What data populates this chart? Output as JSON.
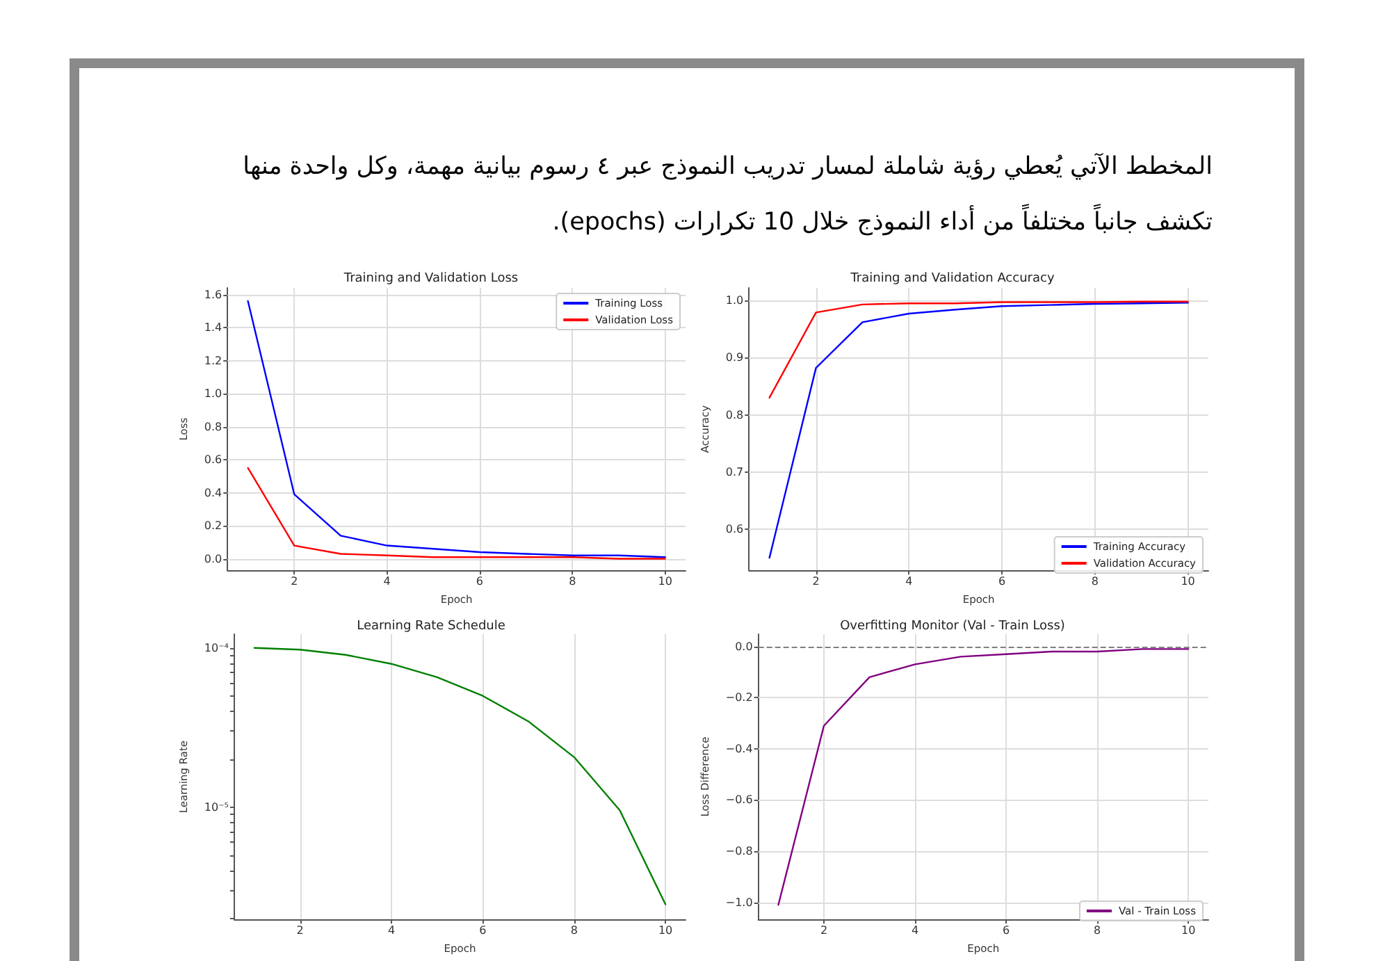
{
  "chart_data": [
    {
      "type": "other",
      "annotations": [
        "المخطط الآتي يُعطي رؤية شاملة لمسار تدريب النموذج عبر ٤ رسوم بيانية مهمة، وكل واحدة منها تكشف جانباً مختلفاً من أداء النموذج خلال 10 تكرارات (epochs)."
      ]
    },
    {
      "type": "line",
      "title": "Training and Validation Loss",
      "xlabel": "Epoch",
      "ylabel": "Loss",
      "x": [
        1,
        2,
        3,
        4,
        5,
        6,
        7,
        8,
        9,
        10
      ],
      "series": [
        {
          "name": "Training Loss",
          "color": "#0000ff",
          "values": [
            1.56,
            0.39,
            0.14,
            0.08,
            0.06,
            0.04,
            0.03,
            0.02,
            0.02,
            0.01
          ]
        },
        {
          "name": "Validation Loss",
          "color": "#ff0000",
          "values": [
            0.55,
            0.08,
            0.03,
            0.02,
            0.01,
            0.01,
            0.01,
            0.01,
            0.0,
            0.0
          ]
        }
      ],
      "xlim": [
        0.56,
        10.44
      ],
      "xticks": [
        2,
        4,
        6,
        8,
        10
      ],
      "ylim": [
        -0.07,
        1.64
      ],
      "yticks": [
        {
          "value": 0,
          "label": "0.0"
        },
        0.2,
        0.4,
        0.6,
        0.8,
        {
          "value": 1,
          "label": "1.0"
        },
        1.2,
        1.4,
        1.6
      ],
      "grid": true,
      "legend": "top right"
    },
    {
      "type": "line",
      "title": "Training and Validation Accuracy",
      "xlabel": "Epoch",
      "ylabel": "Accuracy",
      "x": [
        1,
        2,
        3,
        4,
        5,
        6,
        7,
        8,
        9,
        10
      ],
      "series": [
        {
          "name": "Training Accuracy",
          "color": "#0000ff",
          "values": [
            0.55,
            0.882,
            0.962,
            0.977,
            0.984,
            0.99,
            0.992,
            0.994,
            0.995,
            0.996
          ]
        },
        {
          "name": "Validation Accuracy",
          "color": "#ff0000",
          "values": [
            0.83,
            0.979,
            0.993,
            0.995,
            0.995,
            0.997,
            0.997,
            0.997,
            0.998,
            0.998
          ]
        }
      ],
      "xlim": [
        0.56,
        10.44
      ],
      "xticks": [
        2,
        4,
        6,
        8,
        10
      ],
      "ylim": [
        0.528,
        1.022
      ],
      "yticks": [
        0.6,
        0.7,
        0.8,
        0.9,
        {
          "value": 1,
          "label": "1.0"
        }
      ],
      "grid": true,
      "legend": "bottom right"
    },
    {
      "type": "line",
      "title": "Learning Rate Schedule",
      "xlabel": "Epoch",
      "ylabel": "Learning Rate",
      "x": [
        1,
        2,
        3,
        4,
        5,
        6,
        7,
        8,
        9,
        10
      ],
      "series": [
        {
          "color": "#008000",
          "values": [
            0.0001,
            9.755e-05,
            9.045e-05,
            7.94e-05,
            6.545e-05,
            5e-05,
            3.455e-05,
            2.06e-05,
            9.55e-06,
            2.45e-06
          ]
        }
      ],
      "xlim": [
        0.56,
        10.44
      ],
      "xticks": [
        2,
        4,
        6,
        8,
        10
      ],
      "ylim": [
        1.97e-06,
        0.000122
      ],
      "log": "y",
      "yticks": [
        {
          "value": 2e-06,
          "label": null
        },
        {
          "value": 3e-06,
          "label": null
        },
        {
          "value": 4e-06,
          "label": null
        },
        {
          "value": 5e-06,
          "label": null
        },
        {
          "value": 6e-06,
          "label": null
        },
        {
          "value": 7e-06,
          "label": null
        },
        {
          "value": 8e-06,
          "label": null
        },
        {
          "value": 9e-06,
          "label": null
        },
        {
          "value": 1e-05,
          "label": "10⁻⁵"
        },
        {
          "value": 2e-05,
          "label": null
        },
        {
          "value": 3e-05,
          "label": null
        },
        {
          "value": 4e-05,
          "label": null
        },
        {
          "value": 5e-05,
          "label": null
        },
        {
          "value": 6e-05,
          "label": null
        },
        {
          "value": 7e-05,
          "label": null
        },
        {
          "value": 8e-05,
          "label": null
        },
        {
          "value": 9e-05,
          "label": null
        },
        {
          "value": 0.0001,
          "label": "10⁻⁴"
        }
      ],
      "grid": true,
      "legend": false
    },
    {
      "type": "line",
      "title": "Overfitting Monitor (Val - Train Loss)",
      "xlabel": "Epoch",
      "ylabel": "Loss Difference",
      "x": [
        1,
        2,
        3,
        4,
        5,
        6,
        7,
        8,
        9,
        10
      ],
      "series": [
        {
          "name": "Val - Train Loss",
          "color": "#800080",
          "values": [
            -1.01,
            -0.31,
            -0.12,
            -0.07,
            -0.04,
            -0.03,
            -0.02,
            -0.02,
            -0.01,
            -0.01
          ]
        }
      ],
      "xlim": [
        0.56,
        10.44
      ],
      "xticks": [
        2,
        4,
        6,
        8,
        10
      ],
      "ylim": [
        -1.067,
        0.048
      ],
      "yticks": [
        {
          "value": -1,
          "label": "−1.0"
        },
        {
          "value": -0.8,
          "label": "−0.8"
        },
        {
          "value": -0.6,
          "label": "−0.6"
        },
        {
          "value": -0.4,
          "label": "−0.4"
        },
        {
          "value": -0.2,
          "label": "−0.2"
        },
        {
          "value": 0,
          "label": "0.0"
        }
      ],
      "ref_lines": [
        {
          "axis": "y",
          "value": 0,
          "color": "#808080",
          "line_style": "dashed"
        }
      ],
      "grid": true,
      "legend": "bottom right"
    }
  ]
}
